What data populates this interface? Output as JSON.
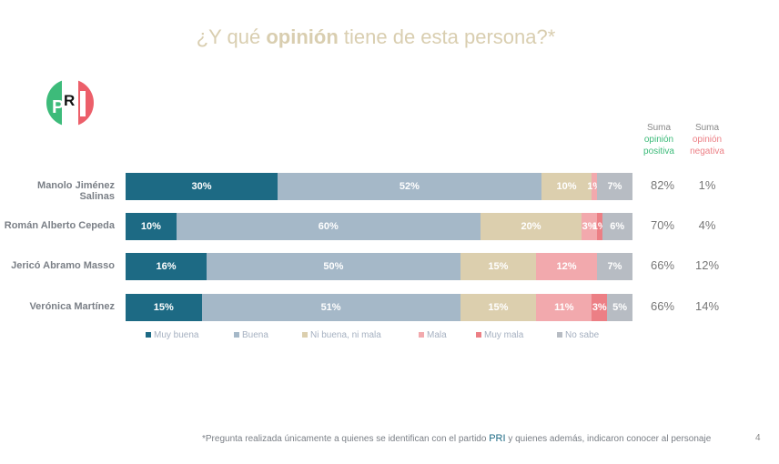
{
  "title": {
    "pre": "¿Y qué ",
    "bold": "opinión",
    "post": " tiene de esta persona?*"
  },
  "logo_text": "PRI",
  "headers": {
    "pos": {
      "l1": "Suma",
      "l2": "opinión",
      "l3": "positiva",
      "color": "#3dbb7a"
    },
    "neg": {
      "l1": "Suma",
      "l2": "opinión",
      "l3": "negativa",
      "color": "#ec7f85"
    }
  },
  "chart_data": {
    "type": "bar",
    "orientation": "horizontal-stacked-100",
    "categories": [
      "Manolo Jiménez Salinas",
      "Román Alberto Cepeda",
      "Jericó Abramo Masso",
      "Verónica Martínez"
    ],
    "series": [
      {
        "name": "Muy buena",
        "color": "#1d6a84",
        "values": [
          30,
          10,
          16,
          15
        ]
      },
      {
        "name": "Buena",
        "color": "#a5b8c8",
        "values": [
          52,
          60,
          50,
          51
        ]
      },
      {
        "name": "Ni buena, ni mala",
        "color": "#dccfae",
        "values": [
          10,
          20,
          15,
          15
        ]
      },
      {
        "name": "Mala",
        "color": "#f2a9ad",
        "values": [
          1,
          3,
          12,
          11
        ]
      },
      {
        "name": "Muy mala",
        "color": "#ec7f85",
        "values": [
          null,
          1,
          null,
          3
        ]
      },
      {
        "name": "No sabe",
        "color": "#b7bcc3",
        "values": [
          7,
          6,
          7,
          5
        ]
      }
    ],
    "suma_positiva": [
      "82%",
      "70%",
      "66%",
      "66%"
    ],
    "suma_negativa": [
      "1%",
      "4%",
      "12%",
      "14%"
    ],
    "legend": "bottom"
  },
  "footer": {
    "pre": "*Pregunta realizada únicamente a quienes se identifican con el partido ",
    "party": "PRI",
    "post": " y quienes además, indicaron conocer al personaje"
  },
  "page_number": "4"
}
